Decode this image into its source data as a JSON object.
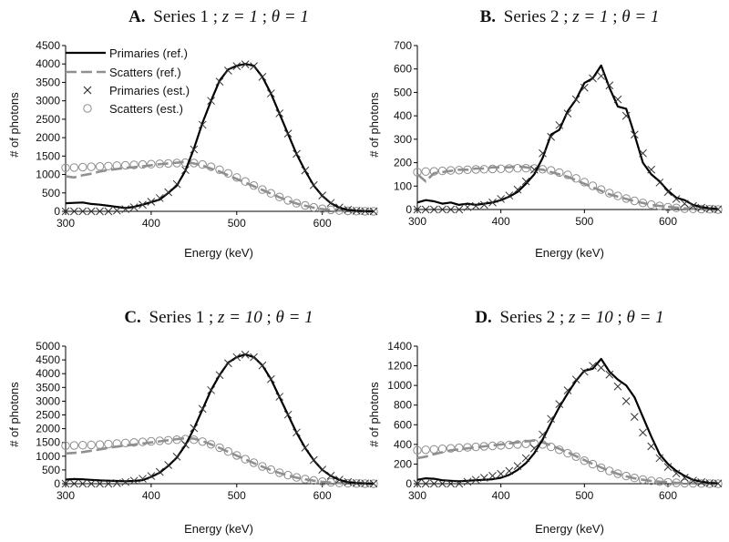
{
  "legend": {
    "entries": [
      {
        "label": "Primaries (ref.)",
        "style": "solid-black"
      },
      {
        "label": "Scatters (ref.)",
        "style": "dashed-gray"
      },
      {
        "label": "Primaries (est.)",
        "style": "cross-marker"
      },
      {
        "label": "Scatters (est.)",
        "style": "circle-marker"
      }
    ]
  },
  "colors": {
    "primaries_ref": "#000000",
    "scatters_ref": "#909090",
    "primaries_est": "#333333",
    "scatters_est": "#8c8c8c"
  },
  "chart_data": [
    {
      "type": "line",
      "panel_label": "A.",
      "title_series": "Series 1",
      "title_z": "z = 1",
      "title_theta": "θ = 1",
      "xlabel": "Energy (keV)",
      "ylabel": "# of photons",
      "xlim": [
        300,
        660
      ],
      "ylim": [
        0,
        4500
      ],
      "xticks": [
        300,
        400,
        500,
        600
      ],
      "yticks": [
        0,
        500,
        1000,
        1500,
        2000,
        2500,
        3000,
        3500,
        4000,
        4500
      ],
      "x": [
        300,
        310,
        320,
        330,
        340,
        350,
        360,
        370,
        380,
        390,
        400,
        410,
        420,
        430,
        440,
        450,
        460,
        470,
        480,
        490,
        500,
        510,
        520,
        530,
        540,
        550,
        560,
        570,
        580,
        590,
        600,
        610,
        620,
        630,
        640,
        650,
        660
      ],
      "series": [
        {
          "name": "Primaries (ref.)",
          "values": [
            220,
            230,
            240,
            200,
            180,
            150,
            120,
            90,
            120,
            180,
            250,
            320,
            500,
            700,
            1100,
            1700,
            2400,
            3000,
            3550,
            3850,
            3950,
            4000,
            3950,
            3650,
            3200,
            2650,
            2100,
            1550,
            1100,
            700,
            420,
            220,
            100,
            40,
            15,
            5,
            0
          ]
        },
        {
          "name": "Scatters (ref.)",
          "values": [
            950,
            920,
            980,
            1020,
            1080,
            1120,
            1150,
            1180,
            1200,
            1220,
            1250,
            1280,
            1300,
            1320,
            1340,
            1300,
            1240,
            1160,
            1080,
            980,
            880,
            780,
            680,
            580,
            480,
            380,
            290,
            210,
            150,
            100,
            60,
            35,
            20,
            10,
            5,
            2,
            1
          ]
        },
        {
          "name": "Primaries (est.)",
          "values": [
            0,
            0,
            0,
            0,
            0,
            0,
            20,
            60,
            110,
            180,
            260,
            360,
            520,
            740,
            1120,
            1680,
            2350,
            3000,
            3520,
            3820,
            3940,
            3990,
            3940,
            3650,
            3200,
            2660,
            2110,
            1560,
            1110,
            710,
            430,
            230,
            105,
            45,
            15,
            5,
            0
          ]
        },
        {
          "name": "Scatters (est.)",
          "values": [
            1180,
            1190,
            1200,
            1210,
            1220,
            1230,
            1240,
            1250,
            1260,
            1270,
            1280,
            1290,
            1300,
            1310,
            1320,
            1310,
            1270,
            1210,
            1130,
            1030,
            920,
            810,
            700,
            590,
            490,
            390,
            300,
            220,
            160,
            110,
            70,
            40,
            22,
            12,
            6,
            3,
            1
          ]
        }
      ]
    },
    {
      "type": "line",
      "panel_label": "B.",
      "title_series": "Series 2",
      "title_z": "z = 1",
      "title_theta": "θ = 1",
      "xlabel": "Energy (keV)",
      "ylabel": "# of photons",
      "xlim": [
        300,
        660
      ],
      "ylim": [
        0,
        700
      ],
      "xticks": [
        300,
        400,
        500,
        600
      ],
      "yticks": [
        0,
        100,
        200,
        300,
        400,
        500,
        600,
        700
      ],
      "x": [
        300,
        310,
        320,
        330,
        340,
        350,
        360,
        370,
        380,
        390,
        400,
        410,
        420,
        430,
        440,
        450,
        460,
        470,
        480,
        490,
        500,
        510,
        520,
        530,
        540,
        550,
        560,
        570,
        580,
        590,
        600,
        610,
        620,
        630,
        640,
        650,
        660
      ],
      "series": [
        {
          "name": "Primaries (ref.)",
          "values": [
            30,
            40,
            35,
            25,
            30,
            20,
            25,
            20,
            25,
            30,
            40,
            55,
            75,
            110,
            150,
            220,
            320,
            340,
            420,
            470,
            540,
            560,
            615,
            520,
            440,
            430,
            320,
            200,
            150,
            120,
            80,
            50,
            40,
            20,
            10,
            5,
            2
          ]
        },
        {
          "name": "Scatters (ref.)",
          "values": [
            150,
            120,
            155,
            160,
            165,
            170,
            170,
            175,
            175,
            180,
            180,
            180,
            185,
            180,
            175,
            170,
            160,
            150,
            140,
            125,
            110,
            95,
            80,
            65,
            55,
            45,
            35,
            28,
            20,
            15,
            12,
            8,
            5,
            3,
            2,
            1,
            0
          ]
        },
        {
          "name": "Primaries (est.)",
          "values": [
            0,
            0,
            0,
            0,
            0,
            0,
            10,
            15,
            20,
            30,
            45,
            60,
            85,
            120,
            170,
            240,
            310,
            360,
            410,
            470,
            520,
            560,
            570,
            530,
            470,
            400,
            320,
            240,
            170,
            115,
            75,
            45,
            25,
            15,
            8,
            3,
            1
          ]
        },
        {
          "name": "Scatters (est.)",
          "values": [
            160,
            162,
            163,
            165,
            167,
            168,
            170,
            171,
            172,
            173,
            174,
            175,
            176,
            176,
            175,
            172,
            167,
            158,
            148,
            133,
            117,
            101,
            85,
            70,
            58,
            47,
            37,
            28,
            21,
            15,
            10,
            7,
            4,
            3,
            2,
            1,
            0
          ]
        }
      ]
    },
    {
      "type": "line",
      "panel_label": "C.",
      "title_series": "Series 1",
      "title_z": "z = 10",
      "title_theta": "θ = 1",
      "xlabel": "Energy (keV)",
      "ylabel": "# of photons",
      "xlim": [
        300,
        660
      ],
      "ylim": [
        0,
        5000
      ],
      "xticks": [
        300,
        400,
        500,
        600
      ],
      "yticks": [
        0,
        500,
        1000,
        1500,
        2000,
        2500,
        3000,
        3500,
        4000,
        4500,
        5000
      ],
      "x": [
        300,
        310,
        320,
        330,
        340,
        350,
        360,
        370,
        380,
        390,
        400,
        410,
        420,
        430,
        440,
        450,
        460,
        470,
        480,
        490,
        500,
        510,
        520,
        530,
        540,
        550,
        560,
        570,
        580,
        590,
        600,
        610,
        620,
        630,
        640,
        650,
        660
      ],
      "series": [
        {
          "name": "Primaries (ref.)",
          "values": [
            150,
            170,
            160,
            140,
            120,
            110,
            100,
            90,
            100,
            130,
            250,
            400,
            650,
            950,
            1400,
            2000,
            2700,
            3400,
            3950,
            4400,
            4600,
            4700,
            4600,
            4300,
            3800,
            3150,
            2500,
            1850,
            1300,
            850,
            500,
            280,
            140,
            60,
            25,
            10,
            3
          ]
        },
        {
          "name": "Scatters (ref.)",
          "values": [
            1100,
            1120,
            1150,
            1200,
            1250,
            1300,
            1350,
            1380,
            1420,
            1460,
            1500,
            1540,
            1580,
            1620,
            1650,
            1640,
            1550,
            1430,
            1300,
            1160,
            1020,
            880,
            750,
            620,
            500,
            390,
            300,
            220,
            160,
            110,
            70,
            40,
            22,
            12,
            6,
            3,
            1
          ]
        },
        {
          "name": "Primaries (est.)",
          "values": [
            0,
            0,
            0,
            0,
            0,
            0,
            20,
            60,
            110,
            180,
            280,
            430,
            680,
            980,
            1420,
            2020,
            2720,
            3400,
            3950,
            4380,
            4600,
            4690,
            4600,
            4300,
            3800,
            3160,
            2510,
            1860,
            1310,
            860,
            510,
            290,
            145,
            62,
            26,
            10,
            3
          ]
        },
        {
          "name": "Scatters (est.)",
          "values": [
            1380,
            1390,
            1400,
            1410,
            1420,
            1440,
            1460,
            1480,
            1500,
            1520,
            1540,
            1560,
            1580,
            1600,
            1620,
            1600,
            1530,
            1430,
            1310,
            1170,
            1030,
            890,
            760,
            630,
            510,
            400,
            310,
            230,
            165,
            115,
            75,
            45,
            25,
            13,
            6,
            3,
            1
          ]
        }
      ]
    },
    {
      "type": "line",
      "panel_label": "D.",
      "title_series": "Series 2",
      "title_z": "z = 10",
      "title_theta": "θ = 1",
      "xlabel": "Energy (keV)",
      "ylabel": "# of photons",
      "xlim": [
        300,
        660
      ],
      "ylim": [
        0,
        1400
      ],
      "xticks": [
        300,
        400,
        500,
        600
      ],
      "yticks": [
        0,
        200,
        400,
        600,
        800,
        1000,
        1200,
        1400
      ],
      "x": [
        300,
        310,
        320,
        330,
        340,
        350,
        360,
        370,
        380,
        390,
        400,
        410,
        420,
        430,
        440,
        450,
        460,
        470,
        480,
        490,
        500,
        510,
        520,
        530,
        540,
        550,
        560,
        570,
        580,
        590,
        600,
        610,
        620,
        630,
        640,
        650,
        660
      ],
      "series": [
        {
          "name": "Primaries (ref.)",
          "values": [
            40,
            55,
            50,
            35,
            30,
            25,
            30,
            35,
            40,
            45,
            60,
            90,
            140,
            210,
            310,
            450,
            620,
            780,
            920,
            1050,
            1150,
            1170,
            1270,
            1140,
            1060,
            1000,
            880,
            680,
            480,
            300,
            200,
            130,
            80,
            40,
            20,
            8,
            3
          ]
        },
        {
          "name": "Scatters (ref.)",
          "values": [
            260,
            275,
            300,
            320,
            340,
            350,
            360,
            370,
            380,
            390,
            400,
            410,
            420,
            430,
            440,
            420,
            390,
            355,
            320,
            280,
            240,
            200,
            165,
            130,
            100,
            75,
            55,
            40,
            28,
            20,
            14,
            9,
            6,
            4,
            2,
            1,
            0
          ]
        },
        {
          "name": "Primaries (est.)",
          "values": [
            0,
            0,
            0,
            0,
            0,
            0,
            20,
            40,
            60,
            80,
            100,
            130,
            180,
            260,
            360,
            500,
            660,
            810,
            950,
            1060,
            1140,
            1200,
            1180,
            1110,
            990,
            840,
            680,
            520,
            380,
            260,
            170,
            105,
            60,
            32,
            15,
            6,
            2
          ]
        },
        {
          "name": "Scatters (est.)",
          "values": [
            340,
            345,
            350,
            355,
            360,
            365,
            370,
            375,
            380,
            385,
            390,
            395,
            400,
            405,
            410,
            400,
            375,
            345,
            310,
            275,
            235,
            198,
            162,
            130,
            102,
            78,
            58,
            42,
            30,
            21,
            14,
            9,
            6,
            4,
            2,
            1,
            0
          ]
        }
      ]
    }
  ]
}
